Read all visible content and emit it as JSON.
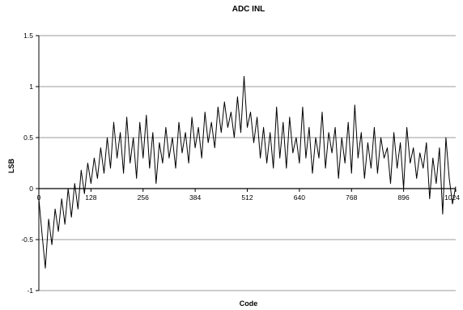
{
  "chart_data": {
    "type": "line",
    "title": "ADC INL",
    "xlabel": "Code",
    "ylabel": "LSB",
    "xlim": [
      0,
      1024
    ],
    "ylim": [
      -1,
      1.5
    ],
    "x_ticks": [
      0,
      128,
      256,
      384,
      512,
      640,
      768,
      896,
      1024
    ],
    "x_tick_labels": [
      "0",
      "128",
      "256",
      "384",
      "512",
      "640",
      "768",
      "896",
      "1024"
    ],
    "y_ticks": [
      -1,
      -0.5,
      0,
      0.5,
      1,
      1.5
    ],
    "y_tick_labels": [
      "-1",
      "-0.5",
      "0",
      "0.5",
      "1",
      "1.5"
    ],
    "grid": "horizontal",
    "legend": "none",
    "line_color": "#000000",
    "series": [
      {
        "x": [
          0,
          8,
          16,
          24,
          32,
          40,
          48,
          56,
          64,
          72,
          80,
          88,
          96,
          104,
          112,
          120,
          128,
          136,
          144,
          152,
          160,
          168,
          176,
          184,
          192,
          200,
          208,
          216,
          224,
          232,
          240,
          248,
          256,
          264,
          272,
          280,
          288,
          296,
          304,
          312,
          320,
          328,
          336,
          344,
          352,
          360,
          368,
          376,
          384,
          392,
          400,
          408,
          416,
          424,
          432,
          440,
          448,
          456,
          464,
          472,
          480,
          488,
          496,
          504,
          512,
          520,
          528,
          536,
          544,
          552,
          560,
          568,
          576,
          584,
          592,
          600,
          608,
          616,
          624,
          632,
          640,
          648,
          656,
          664,
          672,
          680,
          688,
          696,
          704,
          712,
          720,
          728,
          736,
          744,
          752,
          760,
          768,
          776,
          784,
          792,
          800,
          808,
          816,
          824,
          832,
          840,
          848,
          856,
          864,
          872,
          880,
          888,
          896,
          904,
          912,
          920,
          928,
          936,
          944,
          952,
          960,
          968,
          976,
          984,
          992,
          1000,
          1008,
          1016,
          1024
        ],
        "values": [
          -0.1,
          -0.45,
          -0.78,
          -0.3,
          -0.55,
          -0.2,
          -0.42,
          -0.1,
          -0.35,
          0.0,
          -0.28,
          0.05,
          -0.2,
          0.18,
          -0.05,
          0.25,
          0.05,
          0.3,
          0.1,
          0.4,
          0.15,
          0.5,
          0.2,
          0.65,
          0.3,
          0.55,
          0.15,
          0.7,
          0.25,
          0.5,
          0.1,
          0.65,
          0.3,
          0.72,
          0.2,
          0.55,
          0.05,
          0.45,
          0.25,
          0.6,
          0.3,
          0.5,
          0.2,
          0.65,
          0.35,
          0.55,
          0.25,
          0.7,
          0.4,
          0.6,
          0.3,
          0.75,
          0.45,
          0.65,
          0.4,
          0.8,
          0.55,
          0.85,
          0.6,
          0.75,
          0.5,
          0.9,
          0.55,
          1.1,
          0.6,
          0.75,
          0.45,
          0.7,
          0.3,
          0.6,
          0.25,
          0.55,
          0.2,
          0.8,
          0.3,
          0.65,
          0.2,
          0.7,
          0.35,
          0.5,
          0.25,
          0.8,
          0.3,
          0.6,
          0.15,
          0.5,
          0.3,
          0.75,
          0.2,
          0.55,
          0.35,
          0.6,
          0.1,
          0.5,
          0.25,
          0.65,
          0.15,
          0.82,
          0.3,
          0.55,
          0.1,
          0.45,
          0.2,
          0.6,
          0.15,
          0.5,
          0.3,
          0.4,
          0.05,
          0.55,
          0.2,
          0.45,
          0.0,
          0.6,
          0.25,
          0.4,
          0.1,
          0.35,
          0.2,
          0.45,
          -0.1,
          0.3,
          0.05,
          0.4,
          -0.25,
          0.5,
          0.1,
          -0.15,
          0.02
        ]
      }
    ]
  }
}
